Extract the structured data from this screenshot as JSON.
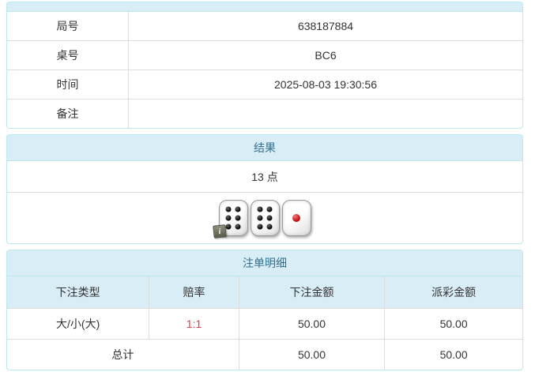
{
  "colors": {
    "panel_border": "#bce8f1",
    "heading_bg": "#d9edf7",
    "heading_text": "#31708f",
    "cell_border": "#dddddd",
    "body_text": "#333333",
    "odds_red": "#e53e3e",
    "pip_black": "#000000",
    "pip_red": "#b80000"
  },
  "info_panel": {
    "rows": [
      {
        "label": "局号",
        "value": "638187884"
      },
      {
        "label": "桌号",
        "value": "BC6"
      },
      {
        "label": "时间",
        "value": "2025-08-03 19:30:56"
      },
      {
        "label": "备注",
        "value": ""
      }
    ]
  },
  "result_panel": {
    "title": "结果",
    "total_points": "13 点",
    "dice": [
      6,
      6,
      1
    ],
    "info_badge": "i"
  },
  "bets_panel": {
    "title": "注单明细",
    "columns": [
      "下注类型",
      "赔率",
      "下注金额",
      "派彩金额"
    ],
    "rows": [
      {
        "type": "大/小(大)",
        "odds": "1:1",
        "bet": "50.00",
        "payout": "50.00"
      }
    ],
    "total_row": {
      "label": "总计",
      "bet": "50.00",
      "payout": "50.00"
    }
  }
}
